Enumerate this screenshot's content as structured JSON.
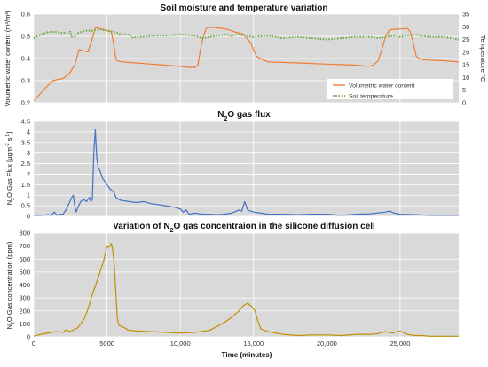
{
  "chart_data": [
    {
      "type": "line",
      "title": "Soil moisture and temperature variation",
      "ylabel": "Volumetric water content (m³/m³)",
      "y2label": "Temperature °C",
      "xlim": [
        0,
        29000
      ],
      "ylim": [
        0.2,
        0.6
      ],
      "y2lim": [
        0,
        35
      ],
      "yticks": [
        "0.2",
        "0.3",
        "0.4",
        "0.5",
        "0.6"
      ],
      "y2ticks": [
        "0",
        "5",
        "10",
        "15",
        "20",
        "25",
        "30",
        "35"
      ],
      "legend_position": "bottom-right",
      "grid": true,
      "series": [
        {
          "name": "Volumetric water content",
          "axis": "left",
          "color": "#ED7D31",
          "style": "solid",
          "x": [
            0,
            300,
            700,
            1000,
            1300,
            1600,
            2000,
            2400,
            2800,
            3100,
            3400,
            3700,
            4000,
            4200,
            4500,
            4800,
            5100,
            5300,
            5500,
            5600,
            5700,
            6000,
            7000,
            8000,
            9000,
            10000,
            10500,
            11000,
            11200,
            11400,
            11600,
            11800,
            12300,
            12900,
            13300,
            13700,
            14300,
            14800,
            15000,
            15200,
            15600,
            16000,
            18000,
            20000,
            22000,
            22800,
            23200,
            23500,
            23800,
            24000,
            24300,
            25500,
            25700,
            25900,
            26100,
            26300,
            26500,
            27000,
            28000,
            29000
          ],
          "y": [
            0.21,
            0.23,
            0.26,
            0.28,
            0.3,
            0.305,
            0.31,
            0.33,
            0.37,
            0.44,
            0.435,
            0.43,
            0.49,
            0.54,
            0.535,
            0.53,
            0.525,
            0.52,
            0.45,
            0.4,
            0.39,
            0.385,
            0.38,
            0.375,
            0.37,
            0.365,
            0.36,
            0.36,
            0.37,
            0.45,
            0.505,
            0.54,
            0.54,
            0.535,
            0.53,
            0.52,
            0.51,
            0.47,
            0.44,
            0.41,
            0.395,
            0.385,
            0.38,
            0.375,
            0.37,
            0.365,
            0.37,
            0.39,
            0.45,
            0.5,
            0.53,
            0.535,
            0.52,
            0.47,
            0.41,
            0.4,
            0.395,
            0.393,
            0.39,
            0.385
          ]
        },
        {
          "name": "Soil temperature",
          "axis": "right",
          "color": "#70AD47",
          "style": "dotted",
          "x": [
            0,
            500,
            1000,
            1500,
            2000,
            2500,
            2600,
            2800,
            3000,
            3500,
            4000,
            4500,
            5000,
            5500,
            6000,
            6500,
            6800,
            7000,
            7500,
            8000,
            9000,
            10000,
            11000,
            11500,
            12000,
            12500,
            13000,
            13500,
            14000,
            14500,
            15000,
            16000,
            17000,
            18000,
            19000,
            20000,
            21000,
            22000,
            23000,
            23500,
            24000,
            24500,
            25000,
            25500,
            26000,
            26500,
            27000,
            28000,
            28500,
            29000
          ],
          "y": [
            25.5,
            27,
            28,
            28,
            27.5,
            28,
            26,
            26,
            27.5,
            28.5,
            28.5,
            29,
            28.5,
            28,
            27,
            27,
            25.5,
            26,
            26,
            26.5,
            26.5,
            27,
            26.5,
            25.5,
            26,
            26.5,
            27,
            26.5,
            27,
            26.5,
            26,
            26.5,
            25.5,
            26,
            25.5,
            25,
            25.5,
            26,
            26,
            25.5,
            26,
            26.5,
            26,
            26.5,
            27,
            26.5,
            26,
            26,
            25.5,
            25
          ]
        }
      ]
    },
    {
      "type": "line",
      "title_parts": [
        "N",
        "2",
        "O gas flux"
      ],
      "ylabel_parts": [
        "N",
        "2",
        "O Gas  Flux [μgm",
        "-2",
        " s",
        "-1",
        "]"
      ],
      "xlim": [
        0,
        29000
      ],
      "ylim": [
        0,
        4.5
      ],
      "yticks": [
        "0",
        "0.5",
        "1",
        "1.5",
        "2",
        "2.5",
        "3",
        "3.5",
        "4",
        "4.5"
      ],
      "grid": true,
      "series": [
        {
          "color": "#4472C4",
          "style": "solid",
          "x": [
            0,
            500,
            1000,
            1200,
            1400,
            1600,
            1800,
            2000,
            2200,
            2400,
            2600,
            2700,
            2800,
            2900,
            3000,
            3200,
            3400,
            3600,
            3800,
            3900,
            4000,
            4100,
            4200,
            4300,
            4400,
            4500,
            4700,
            5000,
            5200,
            5400,
            5500,
            5600,
            5800,
            6000,
            6500,
            7000,
            7500,
            8000,
            8500,
            9000,
            9500,
            10000,
            10200,
            10400,
            10600,
            11000,
            11500,
            12000,
            12500,
            13000,
            13500,
            14000,
            14200,
            14400,
            14600,
            14800,
            15000,
            15500,
            16000,
            17000,
            18000,
            19000,
            20000,
            21000,
            22000,
            23000,
            24000,
            24300,
            24600,
            25000,
            26000,
            27000,
            28000,
            29000
          ],
          "y": [
            0.05,
            0.05,
            0.08,
            0.05,
            0.2,
            0.05,
            0.1,
            0.1,
            0.3,
            0.6,
            0.9,
            1.0,
            0.5,
            0.2,
            0.4,
            0.7,
            0.8,
            0.7,
            0.9,
            0.7,
            0.8,
            3.0,
            4.1,
            2.8,
            2.3,
            2.2,
            1.8,
            1.5,
            1.3,
            1.2,
            1.1,
            0.9,
            0.8,
            0.75,
            0.7,
            0.65,
            0.7,
            0.6,
            0.55,
            0.5,
            0.45,
            0.35,
            0.2,
            0.3,
            0.1,
            0.15,
            0.1,
            0.1,
            0.08,
            0.1,
            0.15,
            0.3,
            0.25,
            0.7,
            0.3,
            0.25,
            0.2,
            0.15,
            0.1,
            0.1,
            0.08,
            0.1,
            0.1,
            0.05,
            0.1,
            0.12,
            0.2,
            0.25,
            0.15,
            0.1,
            0.08,
            0.05,
            0.05,
            0.05
          ]
        }
      ]
    },
    {
      "type": "line",
      "title_parts": [
        "Variation of N",
        "2",
        "O gas concentraion in the silicone diffusion cell"
      ],
      "ylabel_parts": [
        "N",
        "2",
        "O Gas concentration (ppm)"
      ],
      "xlabel": "Time (minutes)",
      "xlim": [
        0,
        29000
      ],
      "ylim": [
        0,
        800
      ],
      "xtick_values": [
        0,
        5000,
        10000,
        15000,
        20000,
        25000
      ],
      "xticks": [
        "0",
        "5000",
        "10,000",
        "15,000",
        "20,000",
        "25,000"
      ],
      "yticks": [
        "0",
        "100",
        "200",
        "300",
        "400",
        "500",
        "600",
        "700",
        "800"
      ],
      "grid": true,
      "series": [
        {
          "color": "#BF9000",
          "style": "solid",
          "x": [
            0,
            500,
            1000,
            1500,
            2000,
            2200,
            2500,
            2800,
            3000,
            3200,
            3500,
            3800,
            4000,
            4200,
            4500,
            4800,
            5000,
            5100,
            5300,
            5400,
            5500,
            5600,
            5700,
            5800,
            6000,
            6200,
            6500,
            7000,
            8000,
            9000,
            10000,
            11000,
            12000,
            12500,
            13000,
            13500,
            14000,
            14300,
            14600,
            14900,
            15100,
            15300,
            15500,
            16000,
            16500,
            17000,
            18000,
            19000,
            20000,
            21000,
            22000,
            23000,
            23500,
            24000,
            24500,
            25000,
            25500,
            26000,
            26500,
            27000,
            28000,
            29000
          ],
          "y": [
            5,
            20,
            30,
            40,
            35,
            55,
            40,
            60,
            70,
            100,
            150,
            250,
            330,
            390,
            490,
            600,
            700,
            690,
            720,
            660,
            550,
            350,
            150,
            90,
            80,
            70,
            50,
            45,
            40,
            35,
            30,
            35,
            50,
            80,
            110,
            150,
            200,
            240,
            260,
            230,
            200,
            120,
            60,
            40,
            30,
            20,
            10,
            15,
            15,
            10,
            20,
            20,
            25,
            40,
            30,
            45,
            20,
            10,
            10,
            5,
            5,
            5
          ]
        }
      ]
    }
  ]
}
